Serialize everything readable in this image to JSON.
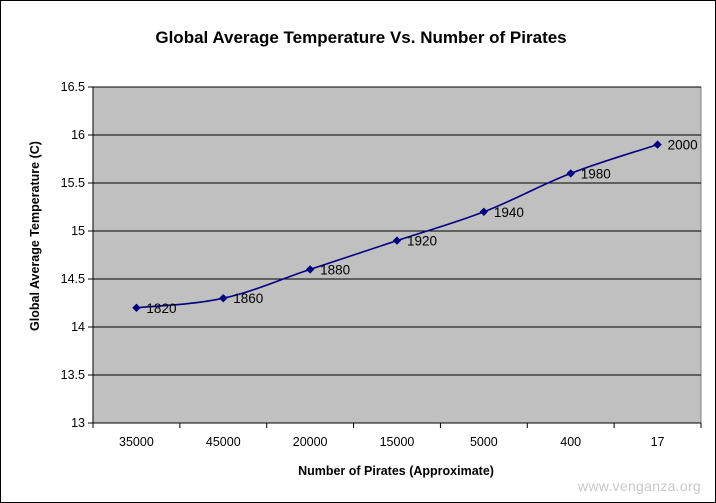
{
  "chart_data": {
    "type": "line",
    "title": "Global Average Temperature Vs. Number of Pirates",
    "xlabel": "Number of Pirates (Approximate)",
    "ylabel": "Global Average Temperature  (C)",
    "categories": [
      "35000",
      "45000",
      "20000",
      "15000",
      "5000",
      "400",
      "17"
    ],
    "series": [
      {
        "values": [
          14.2,
          14.3,
          14.6,
          14.9,
          15.2,
          15.6,
          15.9
        ],
        "point_labels": [
          "1820",
          "1860",
          "1880",
          "1920",
          "1940",
          "1980",
          "2000"
        ],
        "color": "#000080"
      }
    ],
    "ylim": [
      13,
      16.5
    ],
    "yticks": [
      "13",
      "13.5",
      "14",
      "14.5",
      "15",
      "15.5",
      "16",
      "16.5"
    ],
    "grid": true,
    "plot_background": "#c0c0c0"
  },
  "watermark": "www.venganza.org"
}
